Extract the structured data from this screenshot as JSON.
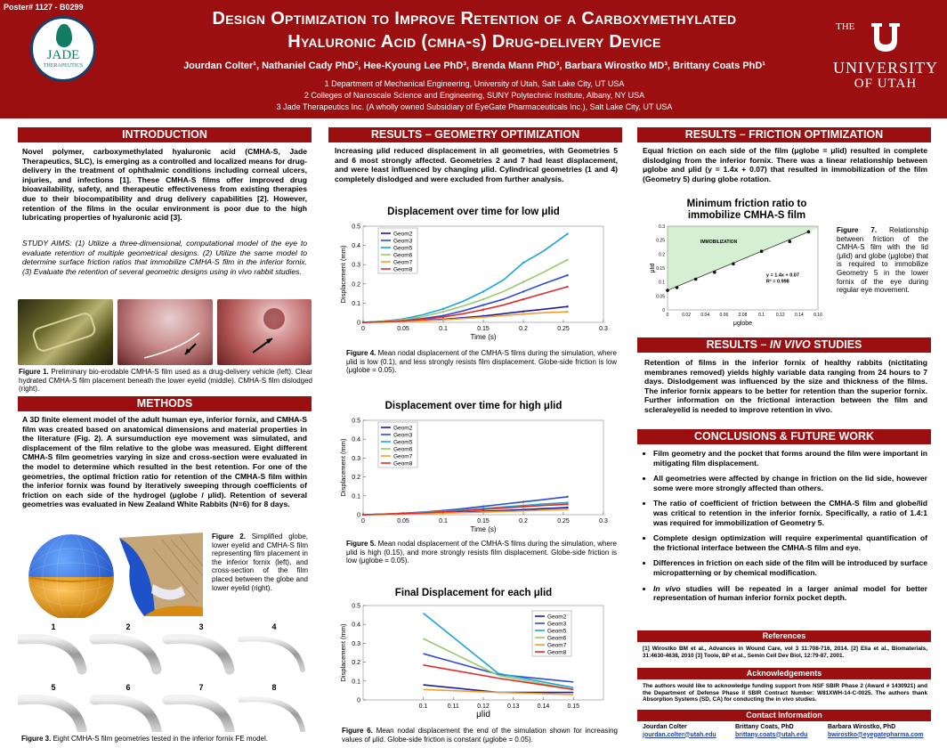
{
  "header": {
    "poster_no": "Poster# 1127 - B0299",
    "title_l1": "Design Optimization to Improve Retention of a Carboxymethylated",
    "title_l2": "Hyaluronic Acid (cmha-s) Drug-delivery Device",
    "authors": "Jourdan Colter¹, Nathaniel Cady PhD², Hee-Kyoung Lee PhD³, Brenda Mann PhD³, Barbara Wirostko MD³, Brittany Coats PhD¹",
    "affil1": "1 Department of Mechanical Engineering, University of Utah, Salt Lake City, UT USA",
    "affil2": "2 Colleges of Nanoscale Science and Engineering, SUNY Polytechnic Institute, Albany, NY USA",
    "affil3": "3 Jade Therapeutics Inc. (A wholly owned Subsidiary of EyeGate Pharmaceuticals Inc.), Salt Lake City, UT USA",
    "jade_logo": "JADE",
    "jade_logo_sub": "THERAPEUTICS",
    "uofu_the": "THE",
    "uofu_l1": "UNIVERSITY",
    "uofu_l2": "OF UTAH"
  },
  "intro": {
    "heading": "INTRODUCTION",
    "p1": "Novel polymer, carboxymethylated hyaluronic acid (CMHA-S, Jade Therapeutics, SLC), is emerging as a controlled and localized means for drug-delivery in the treatment of ophthalmic conditions including corneal ulcers, injuries, and infections [1]. These CMHA-S films offer improved drug bioavailability, safety, and therapeutic effectiveness from existing therapies due to their biocompatibility and drug delivery capabilities [2]. However, retention of the films in the ocular environment is poor due to the high lubricating properties of hyaluronic acid [3].",
    "aims": "STUDY AIMS: (1) Utilize a three-dimensional, computational model of the eye to evaluate retention of multiple geometrical designs. (2) Utilize the same model to determine surface friction ratios that immobilize CMHA-S film in the inferior fornix. (3) Evaluate the retention of several geometric designs using in vivo rabbit studies.",
    "fig1_label": "Figure 1.",
    "fig1_caption": " Preliminary bio-erodable CMHA-S film used as a drug-delivery vehicle (left). Clear hydrated CMHA-S film placement beneath the lower eyelid (middle). CMHA-S film dislodged (right)."
  },
  "methods": {
    "heading": "METHODS",
    "p1": "A 3D finite element model of the adult human eye, inferior fornix, and CMHA-S film was created based on anatomical dimensions and material properties in the literature (Fig. 2). A sursumduction eye movement was simulated, and displacement of the film relative to the globe was measured. Eight different CMHA-S film geometries varying in size and cross-section were evaluated in the model to determine which resulted in the best retention. For one of the geometries, the optimal friction ratio for retention of the CMHA-S film within the inferior fornix was found by iteratively sweeping through coefficients of friction on each side of the hydrogel (μglobe / μlid). Retention of several geometries was evaluated in New Zealand White Rabbits (N=6) for 8 days.",
    "fig2_label": "Figure 2.",
    "fig2_caption": " Simplified globe, lower eyelid and CMHA-S film representing film placement in the inferior fornix (left), and cross-section of the film placed between the globe and lower eyelid (right).",
    "geom_numbers": [
      "1",
      "2",
      "3",
      "4",
      "5",
      "6",
      "7",
      "8"
    ],
    "fig3_label": "Figure 3.",
    "fig3_caption": " Eight CMHA-S film geometries tested in the inferior fornix FE model."
  },
  "geometry": {
    "heading": "RESULTS – GEOMETRY OPTIMIZATION",
    "p1": "Increasing μlid reduced displacement in all geometries, with Geometries 5 and 6 most strongly affected. Geometries 2 and 7 had least displacement, and were least influenced by changing μlid. Cylindrical geometries (1 and 4) completely dislodged and were excluded from further analysis.",
    "fig4_label": "Figure 4.",
    "fig4_caption": " Mean nodal displacement of the CMHA-S films during the simulation, where μlid is low (0.1), and less strongly resists film displacement. Globe-side friction is low (μglobe = 0.05).",
    "fig5_label": "Figure 5.",
    "fig5_caption": " Mean nodal displacement of the CMHA-S films during the simulation, where μlid is high (0.15), and more strongly resists film displacement. Globe-side friction is low (μglobe = 0.05).",
    "fig6_label": "Figure 6.",
    "fig6_caption": " Mean nodal displacement the end of the simulation shown for increasing values of μlid. Globe-side friction is constant (μglobe = 0.05)."
  },
  "friction": {
    "heading": "RESULTS – FRICTION OPTIMIZATION",
    "p1": "Equal friction on each side of the film (μglobe = μlid) resulted in complete dislodging from the inferior fornix. There was a linear relationship between μglobe and μlid (y = 1.4x + 0.07) that resulted in immobilization of the film (Geometry 5) during globe rotation.",
    "fig7_label": "Figure 7.",
    "fig7_caption": " Relationship between friction of the CMHA-S film with the lid (μlid) and globe (μglobe) that is required to immobilize Geometry 5 in the lower fornix of the eye during regular eye movement."
  },
  "invivo": {
    "heading_a": "RESULTS – ",
    "heading_b": "IN VIVO",
    "heading_c": " STUDIES",
    "p1": "Retention of films in the inferior fornix of healthy rabbits (nictitating membranes removed) yields highly variable data ranging from 24 hours to 7 days. Dislodgement was influenced by the size and thickness of the films. The inferior fornix appears to be better for retention than the superior fornix. Further information on the frictional interaction between the film and sclera/eyelid is needed to improve retention in vivo."
  },
  "conclusions": {
    "heading": "CONCLUSIONS & FUTURE WORK",
    "items": [
      "Film geometry and the pocket that forms around the film were important in mitigating film displacement.",
      "All geometries were affected by change in friction on the lid side, however some were more strongly affected than others.",
      "The ratio of coefficient of friction between the CMHA-S film and globe/lid was critical to retention in the inferior fornix. Specifically, a ratio of 1.4:1 was required for immobilization of Geometry 5.",
      "Complete design optimization will require experimental quantification of the frictional interface between the CMHA-S film and eye.",
      "Differences in friction on each side of the film will be introduced by surface micropatterning or by chemical modification.",
      "In vivo studies will be repeated in a larger animal model for better representation of human inferior fornix pocket depth."
    ]
  },
  "references": {
    "heading": "References",
    "text": "[1] Wirostko BM et al., Advances in Wound Care, vol 3 11:708-716, 2014. [2] Elia et al., Biomaterials, 31:4630-4638, 2010 [3] Toole, BP et al., Semin Cell Dev Biol, 12:79-87, 2001."
  },
  "acknowledgements": {
    "heading": "Acknowledgements",
    "text": "The authors would like to acknowledge funding support from NSF SBIR Phase 2 (Award # 1430921) and the Department of Defense Phase II SBIR Contract Number: W81XWH-14-C-0025. The authors thank Absorption Systems (SD, CA) for conducting the in vivo studies."
  },
  "contact": {
    "heading": "Contact Information",
    "people": [
      {
        "name": "Jourdan Colter",
        "email": "jourdan.colter@utah.edu"
      },
      {
        "name": "Brittany Coats, PhD",
        "email": "brittany.coats@utah.edu"
      },
      {
        "name": "Barbara Wirostko, PhD",
        "email": "bwirostko@eyegatepharma.com"
      }
    ]
  },
  "colors": {
    "accent": "#9b0f10",
    "link": "#1f3fb0"
  },
  "chart_data": [
    {
      "id": "fig4",
      "type": "line",
      "title": "Displacement over time for low μlid",
      "xlabel": "Time (s)",
      "ylabel": "Displacement (mm)",
      "xlim": [
        0,
        0.3
      ],
      "ylim": [
        0,
        0.5
      ],
      "xticks": [
        "0",
        "0.05",
        "0.1",
        "0.15",
        "0.2",
        "0.25",
        "0.3"
      ],
      "yticks": [
        "0",
        "0.1",
        "0.2",
        "0.3",
        "0.4",
        "0.5"
      ],
      "x": [
        0,
        0.025,
        0.05,
        0.075,
        0.1,
        0.125,
        0.15,
        0.175,
        0.2,
        0.225,
        0.255
      ],
      "series": [
        {
          "name": "Geom2",
          "color": "#1f1aa0",
          "values": [
            0,
            0.002,
            0.005,
            0.01,
            0.016,
            0.024,
            0.033,
            0.045,
            0.057,
            0.068,
            0.082
          ]
        },
        {
          "name": "Geom3",
          "color": "#2b4ad8",
          "values": [
            0,
            0.004,
            0.01,
            0.02,
            0.035,
            0.06,
            0.09,
            0.12,
            0.16,
            0.2,
            0.245
          ]
        },
        {
          "name": "Geom5",
          "color": "#1aa5d6",
          "values": [
            0,
            0.006,
            0.018,
            0.04,
            0.07,
            0.11,
            0.16,
            0.22,
            0.31,
            0.37,
            0.46
          ]
        },
        {
          "name": "Geom6",
          "color": "#99c86a",
          "values": [
            0,
            0.005,
            0.014,
            0.03,
            0.055,
            0.085,
            0.12,
            0.16,
            0.21,
            0.26,
            0.325
          ]
        },
        {
          "name": "Geom7",
          "color": "#f0a030",
          "values": [
            0,
            0.001,
            0.004,
            0.008,
            0.013,
            0.02,
            0.027,
            0.035,
            0.043,
            0.05,
            0.055
          ]
        },
        {
          "name": "Geom8",
          "color": "#e02a2a",
          "values": [
            0,
            0.003,
            0.008,
            0.016,
            0.028,
            0.045,
            0.066,
            0.09,
            0.12,
            0.15,
            0.185
          ]
        }
      ]
    },
    {
      "id": "fig5",
      "type": "line",
      "title": "Displacement over time for high μlid",
      "xlabel": "Time (s)",
      "ylabel": "Displacement (mm)",
      "xlim": [
        0,
        0.3
      ],
      "ylim": [
        0,
        0.5
      ],
      "xticks": [
        "0",
        "0.05",
        "0.1",
        "0.15",
        "0.2",
        "0.25",
        "0.3"
      ],
      "yticks": [
        "0",
        "0.1",
        "0.2",
        "0.3",
        "0.4",
        "0.5"
      ],
      "x": [
        0,
        0.025,
        0.05,
        0.075,
        0.1,
        0.125,
        0.15,
        0.175,
        0.2,
        0.225,
        0.255
      ],
      "series": [
        {
          "name": "Geom2",
          "color": "#1f1aa0",
          "values": [
            0,
            0.002,
            0.004,
            0.007,
            0.01,
            0.014,
            0.018,
            0.022,
            0.027,
            0.032,
            0.038
          ]
        },
        {
          "name": "Geom3",
          "color": "#2b4ad8",
          "values": [
            0,
            0.003,
            0.008,
            0.014,
            0.022,
            0.032,
            0.044,
            0.056,
            0.068,
            0.08,
            0.095
          ]
        },
        {
          "name": "Geom5",
          "color": "#1aa5d6",
          "values": [
            0,
            0.003,
            0.007,
            0.012,
            0.018,
            0.025,
            0.033,
            0.041,
            0.049,
            0.057,
            0.064
          ]
        },
        {
          "name": "Geom6",
          "color": "#99c86a",
          "values": [
            0,
            0.003,
            0.007,
            0.011,
            0.016,
            0.022,
            0.029,
            0.036,
            0.043,
            0.05,
            0.057
          ]
        },
        {
          "name": "Geom7",
          "color": "#f0a030",
          "values": [
            0,
            0.001,
            0.003,
            0.005,
            0.008,
            0.011,
            0.014,
            0.017,
            0.02,
            0.024,
            0.028
          ]
        },
        {
          "name": "Geom8",
          "color": "#e02a2a",
          "values": [
            0,
            0.003,
            0.006,
            0.01,
            0.015,
            0.021,
            0.028,
            0.035,
            0.042,
            0.049,
            0.055
          ]
        }
      ]
    },
    {
      "id": "fig6",
      "type": "line",
      "title": "Final Displacement for each μlid",
      "xlabel": "μlid",
      "ylabel": "Displacement (mm)",
      "xlim": [
        0.08,
        0.16
      ],
      "ylim": [
        0,
        0.5
      ],
      "xticks": [
        "0.1",
        "0.11",
        "0.12",
        "0.13",
        "0.14",
        "0.15"
      ],
      "yticks": [
        "0",
        "0.1",
        "0.2",
        "0.3",
        "0.4",
        "0.5"
      ],
      "x": [
        0.1,
        0.125,
        0.15
      ],
      "series": [
        {
          "name": "Geom2",
          "color": "#1f1aa0",
          "values": [
            0.08,
            0.04,
            0.04
          ]
        },
        {
          "name": "Geom3",
          "color": "#2b4ad8",
          "values": [
            0.245,
            0.135,
            0.095
          ]
        },
        {
          "name": "Geom5",
          "color": "#1aa5d6",
          "values": [
            0.46,
            0.14,
            0.065
          ]
        },
        {
          "name": "Geom6",
          "color": "#99c86a",
          "values": [
            0.325,
            0.13,
            0.055
          ]
        },
        {
          "name": "Geom7",
          "color": "#f0a030",
          "values": [
            0.055,
            0.04,
            0.028
          ]
        },
        {
          "name": "Geom8",
          "color": "#e02a2a",
          "values": [
            0.185,
            0.115,
            0.055
          ]
        }
      ]
    },
    {
      "id": "fig7",
      "type": "scatter",
      "title": "Minimum friction ratio to immobilize CMHA-S film",
      "xlabel": "μglobe",
      "ylabel": "μlid",
      "xlim": [
        0,
        0.16
      ],
      "ylim": [
        0,
        0.3
      ],
      "xticks": [
        "0",
        "0.02",
        "0.04",
        "0.06",
        "0.08",
        "0.1",
        "0.12",
        "0.14",
        "0.16"
      ],
      "yticks": [
        "0",
        "0.05",
        "0.1",
        "0.15",
        "0.2",
        "0.25",
        "0.3"
      ],
      "region_label": "IMMOBILIZATION",
      "equation": "y = 1.4x + 0.07",
      "r2": "R² = 0.998",
      "x": [
        0,
        0.01,
        0.03,
        0.05,
        0.07,
        0.1,
        0.13,
        0.15
      ],
      "values": [
        0.07,
        0.08,
        0.11,
        0.135,
        0.165,
        0.21,
        0.245,
        0.28
      ]
    }
  ]
}
